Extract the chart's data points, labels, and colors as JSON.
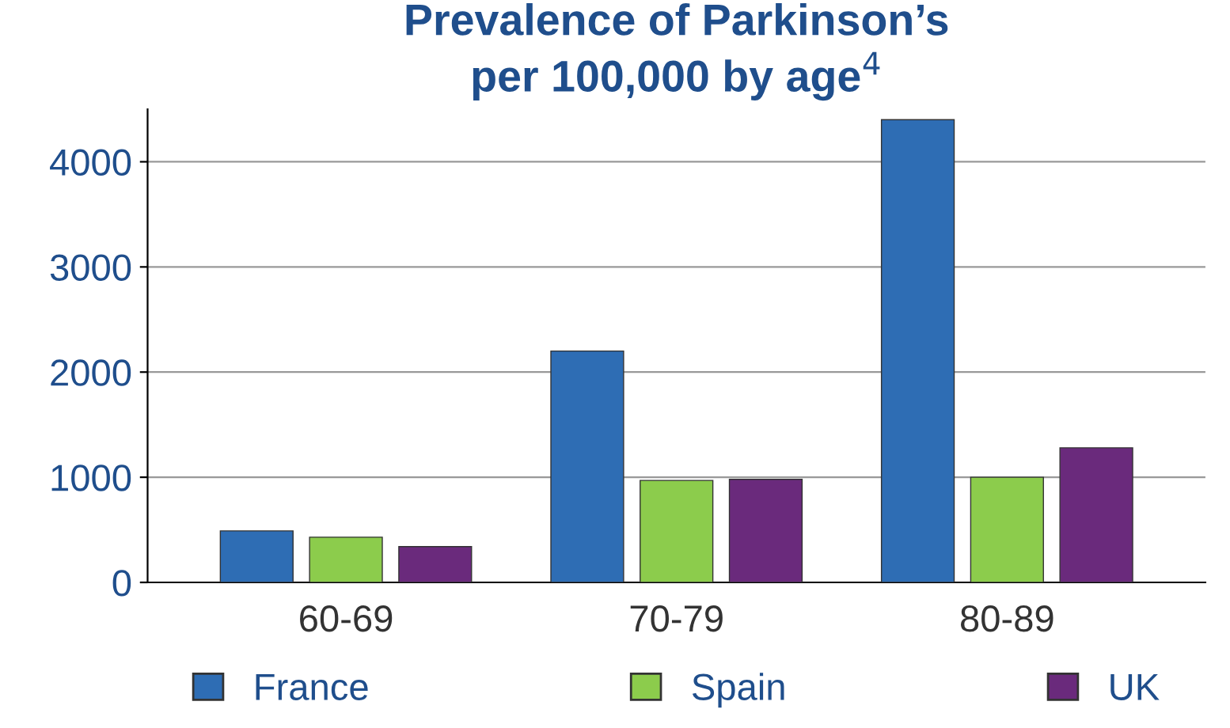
{
  "chart_data": {
    "type": "bar",
    "title": "Prevalence of Parkinson’s\nper 100,000 by age$^{4}$",
    "categories": [
      "60-69",
      "70-79",
      "80-89"
    ],
    "series": [
      {
        "name": "France",
        "color": "#2e6db4",
        "values": [
          490,
          2200,
          4400
        ]
      },
      {
        "name": "Spain",
        "color": "#8ccc4c",
        "values": [
          430,
          970,
          1000
        ]
      },
      {
        "name": "UK",
        "color": "#6a2a7c",
        "values": [
          340,
          980,
          1280
        ]
      }
    ],
    "ylim": [
      0,
      4500
    ],
    "yticks": [
      0,
      1000,
      2000,
      3000,
      4000
    ],
    "grid": "y",
    "legend": "bottom"
  }
}
